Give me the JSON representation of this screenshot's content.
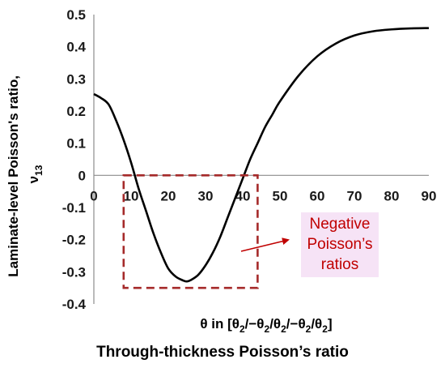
{
  "caption": "Through-thickness Poisson’s ratio",
  "chart_data": {
    "type": "line",
    "title": "",
    "ylabel_line1": "Laminate-level Poisson's ratio,",
    "ylabel_line2": "ν",
    "ylabel_sub": "13",
    "xlabel": {
      "prefix": "θ in [θ",
      "parts": [
        {
          "sub": "2",
          "text": "/−θ"
        },
        {
          "sub": "2",
          "text": "/θ"
        },
        {
          "sub": "2",
          "text": "/−θ"
        },
        {
          "sub": "2",
          "text": "/θ"
        },
        {
          "sub": "2",
          "text": "]"
        }
      ]
    },
    "xlim": [
      0,
      90
    ],
    "ylim": [
      -0.4,
      0.5
    ],
    "xticks": [
      "0",
      "10",
      "20",
      "30",
      "40",
      "50",
      "60",
      "70",
      "80",
      "90"
    ],
    "yticks": [
      "0.5",
      "0.4",
      "0.3",
      "0.2",
      "0.1",
      "0",
      "-0.1",
      "-0.2",
      "-0.3",
      "-0.4"
    ],
    "grid": false,
    "series": [
      {
        "color": "#000000",
        "x": [
          0,
          2,
          4,
          6,
          8,
          10,
          12,
          14,
          16,
          18,
          20,
          22,
          24,
          25,
          26,
          28,
          30,
          32,
          34,
          36,
          38,
          40,
          42,
          44,
          46,
          48,
          50,
          55,
          60,
          65,
          70,
          75,
          80,
          85,
          90
        ],
        "y": [
          0.253,
          0.24,
          0.22,
          0.17,
          0.11,
          0.04,
          -0.04,
          -0.11,
          -0.18,
          -0.24,
          -0.29,
          -0.315,
          -0.327,
          -0.33,
          -0.326,
          -0.31,
          -0.28,
          -0.24,
          -0.19,
          -0.13,
          -0.07,
          -0.01,
          0.05,
          0.1,
          0.15,
          0.19,
          0.23,
          0.31,
          0.37,
          0.41,
          0.435,
          0.448,
          0.454,
          0.457,
          0.458
        ]
      }
    ],
    "annotation": {
      "box_x": [
        8,
        44
      ],
      "box_y": [
        -0.35,
        0.0
      ],
      "box_color": "#a52a2a",
      "arrow_color": "#c00000",
      "text": [
        "Negative",
        "Poisson’s",
        "ratios"
      ],
      "text_color": "#c00000",
      "text_highlight": "#f6e3f6"
    }
  }
}
